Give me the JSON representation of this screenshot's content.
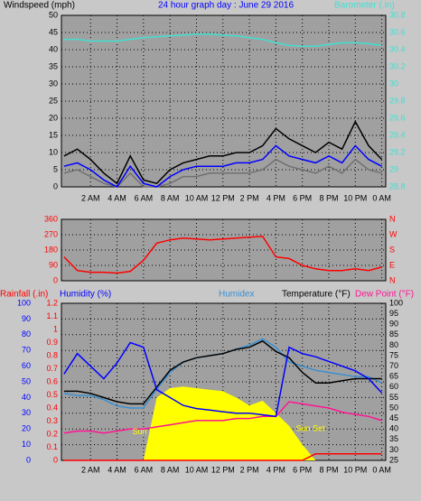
{
  "chart_data": [
    {
      "type": "line",
      "title": "24 hour graph day : June 29 2016",
      "x": [
        0,
        1,
        2,
        3,
        4,
        5,
        6,
        7,
        8,
        9,
        10,
        11,
        12,
        13,
        14,
        15,
        16,
        17,
        18,
        19,
        20,
        21,
        22,
        23,
        24
      ],
      "xlim": [
        -0.2,
        24.3
      ],
      "xticks": [
        {
          "value": 2,
          "label": "2 AM"
        },
        {
          "value": 4,
          "label": "4 AM"
        },
        {
          "value": 6,
          "label": "6 AM"
        },
        {
          "value": 8,
          "label": "8 AM"
        },
        {
          "value": 10,
          "label": "10 AM"
        },
        {
          "value": 12,
          "label": "12 PM"
        },
        {
          "value": 14,
          "label": "2 PM"
        },
        {
          "value": 16,
          "label": "4 PM"
        },
        {
          "value": 18,
          "label": "6 PM"
        },
        {
          "value": 20,
          "label": "8 PM"
        },
        {
          "value": 22,
          "label": "10 PM"
        },
        {
          "value": 24,
          "label": "0 AM"
        }
      ],
      "grid": true,
      "axes": [
        {
          "id": "wind",
          "label": "Windspeed (mph)",
          "side": "left",
          "color": "#000000",
          "grid": true,
          "lim": [
            0,
            50
          ],
          "ticks": [
            0,
            5,
            10,
            15,
            20,
            25,
            30,
            35,
            40,
            45,
            50
          ]
        },
        {
          "id": "baro",
          "label": "Barometer (.in)",
          "side": "right",
          "color": "#40e0d0",
          "lim": [
            28.8,
            30.8
          ],
          "ticks": [
            28.8,
            29,
            29.2,
            29.4,
            29.6,
            29.8,
            30,
            30.2,
            30.4,
            30.6,
            30.8
          ]
        }
      ],
      "series": [
        {
          "axis": "wind",
          "color": "#000000",
          "values": [
            9,
            11,
            8,
            4,
            1,
            9,
            2,
            1,
            5,
            7,
            8,
            9,
            9,
            10,
            10,
            12,
            17,
            14,
            12,
            10,
            13,
            11,
            19,
            12,
            8
          ]
        },
        {
          "axis": "wind",
          "color": "#707070",
          "values": [
            4,
            5,
            3,
            1,
            0,
            4,
            0,
            0,
            1,
            3,
            3,
            4,
            4,
            4,
            4,
            5,
            8,
            6,
            5,
            4,
            6,
            4,
            8,
            5,
            4
          ]
        },
        {
          "axis": "wind",
          "color": "#0000ff",
          "values": [
            6,
            7,
            5,
            2,
            0,
            6,
            1,
            0,
            3,
            5,
            6,
            6,
            6,
            7,
            7,
            8,
            12,
            9,
            8,
            7,
            9,
            7,
            12,
            8,
            6
          ]
        },
        {
          "axis": "baro",
          "color": "#40e0d0",
          "values": [
            30.52,
            30.52,
            30.5,
            30.5,
            30.5,
            30.52,
            30.54,
            30.55,
            30.56,
            30.57,
            30.58,
            30.58,
            30.57,
            30.56,
            30.54,
            30.52,
            30.48,
            30.45,
            30.44,
            30.44,
            30.46,
            30.48,
            30.48,
            30.47,
            30.45
          ]
        }
      ]
    },
    {
      "type": "line",
      "x": [
        0,
        1,
        2,
        3,
        4,
        5,
        6,
        7,
        8,
        9,
        10,
        11,
        12,
        13,
        14,
        15,
        16,
        17,
        18,
        19,
        20,
        21,
        22,
        23,
        24
      ],
      "xlim": [
        -0.2,
        24.3
      ],
      "grid": true,
      "axes": [
        {
          "id": "dir",
          "side": "left",
          "color": "#ff0000",
          "grid": true,
          "lim": [
            0,
            360
          ],
          "ticks": [
            0,
            90,
            180,
            270,
            360
          ]
        },
        {
          "id": "compass",
          "side": "right",
          "color": "#ff0000",
          "lim": [
            0,
            360
          ],
          "ticks": [
            {
              "value": 0,
              "label": "N"
            },
            {
              "value": 90,
              "label": "E"
            },
            {
              "value": 180,
              "label": "S"
            },
            {
              "value": 270,
              "label": "W"
            },
            {
              "value": 360,
              "label": "N"
            }
          ]
        }
      ],
      "series": [
        {
          "axis": "dir",
          "color": "#ff0000",
          "values": [
            140,
            60,
            50,
            50,
            45,
            55,
            120,
            220,
            240,
            250,
            245,
            240,
            245,
            250,
            255,
            260,
            140,
            130,
            90,
            70,
            60,
            60,
            70,
            60,
            80
          ]
        }
      ]
    },
    {
      "type": "line",
      "x": [
        0,
        1,
        2,
        3,
        4,
        5,
        6,
        7,
        8,
        9,
        10,
        11,
        12,
        13,
        14,
        15,
        16,
        17,
        18,
        19,
        20,
        21,
        22,
        23,
        24
      ],
      "xlim": [
        -0.2,
        24.3
      ],
      "xticks": [
        {
          "value": 2,
          "label": "2 AM"
        },
        {
          "value": 4,
          "label": "4 AM"
        },
        {
          "value": 6,
          "label": "6 AM"
        },
        {
          "value": 8,
          "label": "8 AM"
        },
        {
          "value": 10,
          "label": "10 AM"
        },
        {
          "value": 12,
          "label": "12 PM"
        },
        {
          "value": 14,
          "label": "2 PM"
        },
        {
          "value": 16,
          "label": "4 PM"
        },
        {
          "value": 18,
          "label": "6 PM"
        },
        {
          "value": 20,
          "label": "8 PM"
        },
        {
          "value": 22,
          "label": "10 PM"
        },
        {
          "value": 24,
          "label": "0 AM"
        }
      ],
      "grid": true,
      "axes": [
        {
          "id": "rain",
          "label": "Rainfall (.in)",
          "side": "left",
          "color": "#ff0000",
          "lim": [
            0,
            1.2
          ],
          "ticks": [
            0,
            0.1,
            0.2,
            0.3,
            0.4,
            0.5,
            0.6,
            0.7,
            0.8,
            0.9,
            1,
            1.1,
            1.2
          ]
        },
        {
          "id": "hum",
          "label": "Humidity (%)",
          "side": "left",
          "color": "#0000ff",
          "grid": true,
          "lim": [
            0,
            100
          ],
          "ticks": [
            0,
            10,
            20,
            30,
            40,
            50,
            60,
            70,
            80,
            90,
            100
          ]
        },
        {
          "id": "temp",
          "label": "Temperature (°F)",
          "side": "right",
          "color": "#000000",
          "lim": [
            25,
            100
          ],
          "ticks": [
            25,
            30,
            35,
            40,
            45,
            50,
            55,
            60,
            65,
            70,
            75,
            80,
            85,
            90,
            95,
            100
          ]
        }
      ],
      "series": [
        {
          "axis": "hum",
          "color": "#ffff00",
          "fill": true,
          "values": [
            0,
            0,
            0,
            0,
            0,
            0,
            0,
            40,
            46,
            47,
            46,
            45,
            44,
            40,
            35,
            38,
            30,
            22,
            10,
            0,
            0,
            0,
            0,
            0,
            0
          ]
        },
        {
          "axis": "temp",
          "name": "Dew Point (°F)",
          "color": "#ff1493",
          "values": [
            38,
            39,
            39,
            38,
            39,
            40,
            40,
            41,
            42,
            43,
            44,
            44,
            44,
            45,
            45,
            46,
            46,
            53,
            52,
            51,
            50,
            48,
            47,
            46,
            44
          ]
        },
        {
          "axis": "temp",
          "name": "Humidex",
          "color": "#3a8fd0",
          "values": [
            57,
            56,
            56,
            54,
            51,
            50,
            50,
            59,
            67,
            72,
            74,
            75,
            76,
            78,
            80,
            83,
            79,
            72,
            70,
            68,
            67,
            66,
            65,
            65,
            62
          ]
        },
        {
          "axis": "temp",
          "color": "#000000",
          "values": [
            58,
            58,
            57,
            55,
            53,
            52,
            52,
            60,
            68,
            72,
            74,
            75,
            76,
            78,
            79,
            82,
            77,
            74,
            67,
            62,
            62,
            63,
            64,
            64,
            64
          ]
        },
        {
          "axis": "hum",
          "color": "#0000ff",
          "values": [
            55,
            68,
            60,
            52,
            62,
            75,
            72,
            45,
            40,
            35,
            33,
            32,
            31,
            30,
            30,
            29,
            28,
            72,
            68,
            66,
            63,
            60,
            57,
            52,
            43
          ]
        },
        {
          "axis": "rain",
          "color": "#ff0000",
          "values": [
            0,
            0,
            0,
            0,
            0,
            0,
            0,
            0,
            0,
            0,
            0,
            0,
            0,
            0,
            0,
            0,
            0,
            0,
            0,
            0.05,
            0.05,
            0.05,
            0.05,
            0.05,
            0.05
          ]
        }
      ],
      "annotations": [
        {
          "text": "Sun Rise",
          "x": 6.4,
          "y": 18,
          "axis": "hum"
        },
        {
          "text": "Sun Set",
          "x": 18.6,
          "y": 20,
          "axis": "hum"
        }
      ]
    }
  ]
}
